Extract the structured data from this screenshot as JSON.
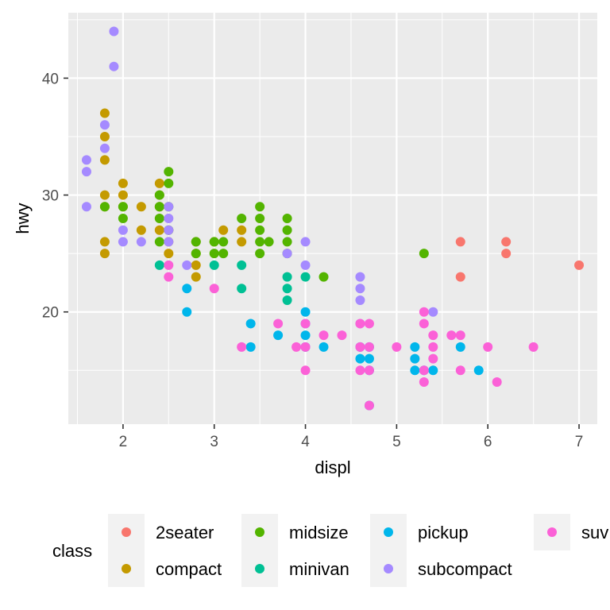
{
  "chart_data": {
    "type": "scatter",
    "title": "",
    "xlabel": "displ",
    "ylabel": "hwy",
    "xlim": [
      1.4,
      7.2
    ],
    "ylim": [
      10.4,
      45.6
    ],
    "x_ticks": [
      2,
      3,
      4,
      5,
      6,
      7
    ],
    "y_ticks": [
      20,
      30,
      40
    ],
    "grid": true,
    "legend": {
      "title": "class",
      "position": "bottom"
    },
    "series": [
      {
        "name": "2seater",
        "color": "#F8766D",
        "points": [
          [
            5.7,
            26
          ],
          [
            5.7,
            23
          ],
          [
            6.2,
            26
          ],
          [
            6.2,
            25
          ],
          [
            7.0,
            24
          ]
        ]
      },
      {
        "name": "compact",
        "color": "#C49A00",
        "points": [
          [
            1.8,
            29
          ],
          [
            1.8,
            26
          ],
          [
            1.8,
            25
          ],
          [
            1.8,
            30
          ],
          [
            1.8,
            33
          ],
          [
            1.8,
            35
          ],
          [
            1.8,
            37
          ],
          [
            2.0,
            31
          ],
          [
            2.0,
            30
          ],
          [
            2.0,
            29
          ],
          [
            2.2,
            29
          ],
          [
            2.2,
            27
          ],
          [
            2.4,
            31
          ],
          [
            2.4,
            30
          ],
          [
            2.4,
            29
          ],
          [
            2.4,
            27
          ],
          [
            2.5,
            27
          ],
          [
            2.5,
            26
          ],
          [
            2.5,
            25
          ],
          [
            2.8,
            26
          ],
          [
            2.8,
            25
          ],
          [
            2.8,
            24
          ],
          [
            2.8,
            23
          ],
          [
            3.0,
            26
          ],
          [
            3.1,
            27
          ],
          [
            3.3,
            27
          ],
          [
            3.3,
            26
          ]
        ]
      },
      {
        "name": "midsize",
        "color": "#53B400",
        "points": [
          [
            1.8,
            29
          ],
          [
            2.0,
            29
          ],
          [
            2.0,
            28
          ],
          [
            2.4,
            30
          ],
          [
            2.4,
            29
          ],
          [
            2.4,
            28
          ],
          [
            2.4,
            26
          ],
          [
            2.5,
            32
          ],
          [
            2.5,
            31
          ],
          [
            2.5,
            29
          ],
          [
            2.5,
            27
          ],
          [
            2.8,
            26
          ],
          [
            2.8,
            25
          ],
          [
            3.0,
            26
          ],
          [
            3.0,
            25
          ],
          [
            3.1,
            26
          ],
          [
            3.1,
            25
          ],
          [
            3.3,
            28
          ],
          [
            3.5,
            29
          ],
          [
            3.5,
            28
          ],
          [
            3.5,
            27
          ],
          [
            3.5,
            26
          ],
          [
            3.5,
            25
          ],
          [
            3.6,
            26
          ],
          [
            3.8,
            28
          ],
          [
            3.8,
            27
          ],
          [
            3.8,
            26
          ],
          [
            3.8,
            25
          ],
          [
            4.2,
            23
          ],
          [
            5.3,
            25
          ]
        ]
      },
      {
        "name": "minivan",
        "color": "#00C094",
        "points": [
          [
            2.4,
            24
          ],
          [
            3.0,
            24
          ],
          [
            3.3,
            24
          ],
          [
            3.3,
            22
          ],
          [
            3.8,
            23
          ],
          [
            3.8,
            22
          ],
          [
            3.8,
            21
          ],
          [
            4.0,
            23
          ]
        ]
      },
      {
        "name": "pickup",
        "color": "#00B6EB",
        "points": [
          [
            2.7,
            22
          ],
          [
            2.7,
            20
          ],
          [
            3.4,
            19
          ],
          [
            3.4,
            17
          ],
          [
            3.7,
            18
          ],
          [
            4.0,
            20
          ],
          [
            4.0,
            19
          ],
          [
            4.0,
            18
          ],
          [
            4.0,
            17
          ],
          [
            4.2,
            17
          ],
          [
            4.6,
            17
          ],
          [
            4.6,
            16
          ],
          [
            4.7,
            17
          ],
          [
            4.7,
            16
          ],
          [
            4.7,
            15
          ],
          [
            4.7,
            12
          ],
          [
            5.2,
            17
          ],
          [
            5.2,
            16
          ],
          [
            5.2,
            15
          ],
          [
            5.3,
            15
          ],
          [
            5.4,
            15
          ],
          [
            5.7,
            17
          ],
          [
            5.9,
            15
          ]
        ]
      },
      {
        "name": "subcompact",
        "color": "#A58AFF",
        "points": [
          [
            1.6,
            33
          ],
          [
            1.6,
            32
          ],
          [
            1.6,
            29
          ],
          [
            1.8,
            36
          ],
          [
            1.8,
            34
          ],
          [
            1.9,
            44
          ],
          [
            1.9,
            41
          ],
          [
            2.0,
            27
          ],
          [
            2.0,
            26
          ],
          [
            2.2,
            26
          ],
          [
            2.5,
            29
          ],
          [
            2.5,
            28
          ],
          [
            2.5,
            27
          ],
          [
            2.5,
            26
          ],
          [
            2.7,
            24
          ],
          [
            3.8,
            25
          ],
          [
            4.0,
            26
          ],
          [
            4.0,
            24
          ],
          [
            4.6,
            23
          ],
          [
            4.6,
            22
          ],
          [
            4.6,
            21
          ],
          [
            4.6,
            19
          ],
          [
            5.4,
            20
          ]
        ]
      },
      {
        "name": "suv",
        "color": "#FB61D7",
        "points": [
          [
            2.5,
            24
          ],
          [
            2.5,
            23
          ],
          [
            3.0,
            22
          ],
          [
            3.3,
            17
          ],
          [
            3.7,
            19
          ],
          [
            3.9,
            17
          ],
          [
            4.0,
            19
          ],
          [
            4.0,
            17
          ],
          [
            4.0,
            15
          ],
          [
            4.2,
            18
          ],
          [
            4.4,
            18
          ],
          [
            4.6,
            19
          ],
          [
            4.6,
            17
          ],
          [
            4.6,
            15
          ],
          [
            4.7,
            19
          ],
          [
            4.7,
            17
          ],
          [
            4.7,
            15
          ],
          [
            4.7,
            12
          ],
          [
            5.0,
            17
          ],
          [
            5.3,
            20
          ],
          [
            5.3,
            19
          ],
          [
            5.3,
            15
          ],
          [
            5.3,
            14
          ],
          [
            5.4,
            18
          ],
          [
            5.4,
            17
          ],
          [
            5.4,
            16
          ],
          [
            5.6,
            18
          ],
          [
            5.7,
            18
          ],
          [
            5.7,
            15
          ],
          [
            6.0,
            17
          ],
          [
            6.1,
            14
          ],
          [
            6.5,
            17
          ]
        ]
      }
    ]
  }
}
